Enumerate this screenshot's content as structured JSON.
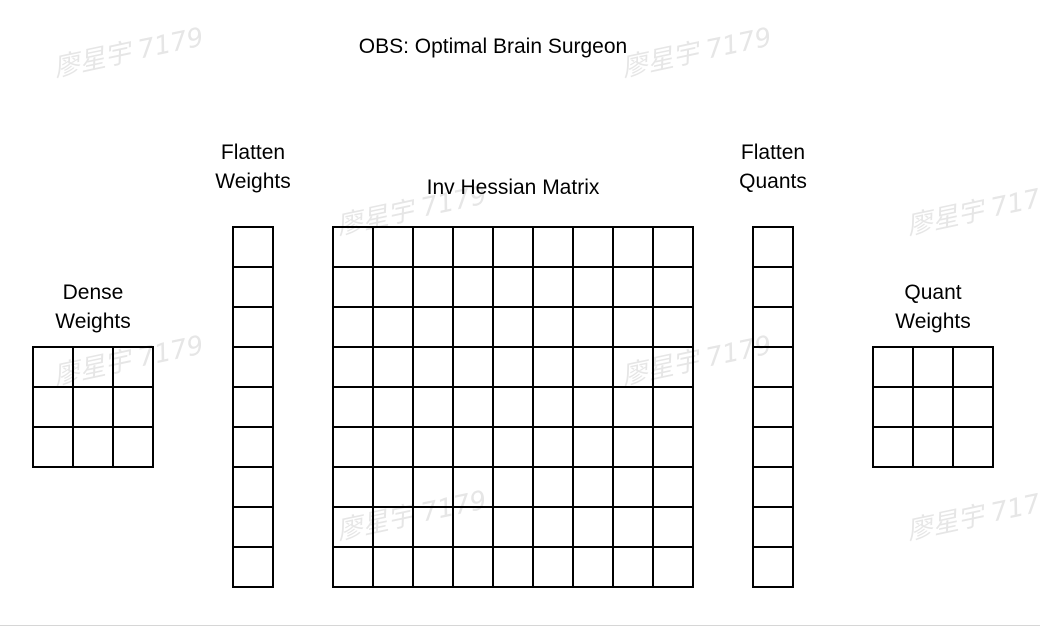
{
  "title": "OBS: Optimal Brain Surgeon",
  "blocks": {
    "dense": {
      "label_line1": "Dense",
      "label_line2": "Weights",
      "rows": 3,
      "cols": 3
    },
    "flatten_weights": {
      "label_line1": "Flatten",
      "label_line2": "Weights",
      "rows": 9,
      "cols": 1
    },
    "inv_hessian": {
      "label": "Inv Hessian Matrix",
      "rows": 9,
      "cols": 9
    },
    "flatten_quants": {
      "label_line1": "Flatten",
      "label_line2": "Quants",
      "rows": 9,
      "cols": 1
    },
    "quant": {
      "label_line1": "Quant",
      "label_line2": "Weights",
      "rows": 3,
      "cols": 3
    }
  },
  "watermark_text": "廖星宇 7179"
}
